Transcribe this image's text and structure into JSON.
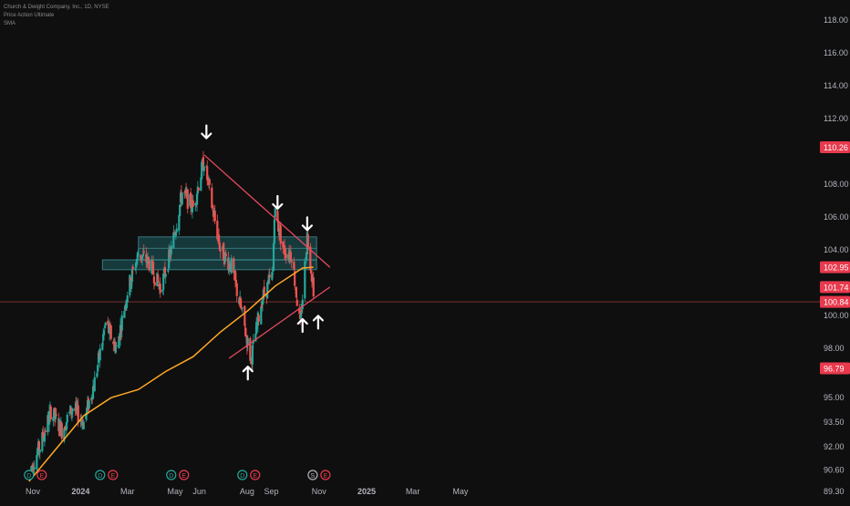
{
  "header": {
    "symbol_line": "Church & Dwight Company, Inc., 1D, NYSE",
    "indicator_1": "Price Action Ultimate",
    "indicator_2": "SMA"
  },
  "colors": {
    "background": "#0f0f0f",
    "bull": "#26a69a",
    "bear": "#ef5350",
    "sma": "#ffa726",
    "trendline": "#e84a5f",
    "zone": "#1d5d63",
    "axis_text": "#b2b5be",
    "arrow": "#ffffff"
  },
  "chart_data": {
    "type": "candlestick",
    "title": "Church & Dwight Company, Inc., 1D, NYSE",
    "x_ticks": [
      "Nov",
      "2024",
      "Mar",
      "May",
      "Jun",
      "Aug",
      "Sep",
      "Nov",
      "2025",
      "Mar",
      "May"
    ],
    "y_ticks": [
      "118.00",
      "116.00",
      "114.00",
      "112.00",
      "108.00",
      "106.00",
      "104.00",
      "100.00",
      "98.00",
      "95.00",
      "93.50",
      "92.00",
      "90.60",
      "89.30"
    ],
    "ylim": [
      88.9,
      118.5
    ],
    "price_labels": [
      {
        "text": "110.26",
        "value": 110.26,
        "color": "#e8394d"
      },
      {
        "text": "102.95",
        "value": 102.95,
        "color": "#e8394d"
      },
      {
        "text": "101.74",
        "value": 101.74,
        "color": "#e8394d"
      },
      {
        "text": "100.84",
        "value": 100.84,
        "color": "#e8394d"
      },
      {
        "text": "96.79",
        "value": 96.79,
        "color": "#e8394d"
      }
    ],
    "horizontal_line": 100.84,
    "price_path": [
      [
        "2023-10-27",
        90.5
      ],
      [
        "2023-11-10",
        92.0
      ],
      [
        "2023-11-24",
        94.2
      ],
      [
        "2023-12-08",
        93.0
      ],
      [
        "2023-12-22",
        94.4
      ],
      [
        "2024-01-05",
        93.5
      ],
      [
        "2024-01-19",
        96.0
      ],
      [
        "2024-02-02",
        99.5
      ],
      [
        "2024-02-16",
        98.0
      ],
      [
        "2024-03-01",
        101.5
      ],
      [
        "2024-03-15",
        103.8
      ],
      [
        "2024-03-29",
        103.2
      ],
      [
        "2024-04-12",
        101.6
      ],
      [
        "2024-04-26",
        104.0
      ],
      [
        "2024-05-10",
        107.5
      ],
      [
        "2024-05-24",
        106.6
      ],
      [
        "2024-06-07",
        109.5
      ],
      [
        "2024-06-14",
        107.5
      ],
      [
        "2024-06-28",
        104.0
      ],
      [
        "2024-07-12",
        103.0
      ],
      [
        "2024-07-26",
        100.0
      ],
      [
        "2024-08-06",
        97.3
      ],
      [
        "2024-08-20",
        101.0
      ],
      [
        "2024-09-03",
        102.5
      ],
      [
        "2024-09-05",
        106.4
      ],
      [
        "2024-09-17",
        104.0
      ],
      [
        "2024-09-27",
        103.8
      ],
      [
        "2024-10-08",
        99.3
      ],
      [
        "2024-10-17",
        104.9
      ],
      [
        "2024-10-25",
        101.7
      ]
    ],
    "sma_path": [
      [
        "2023-10-27",
        89.9
      ],
      [
        "2023-12-01",
        91.9
      ],
      [
        "2024-01-05",
        93.9
      ],
      [
        "2024-02-09",
        95.0
      ],
      [
        "2024-03-15",
        95.5
      ],
      [
        "2024-04-19",
        96.6
      ],
      [
        "2024-05-24",
        97.5
      ],
      [
        "2024-06-28",
        99.0
      ],
      [
        "2024-08-02",
        100.3
      ],
      [
        "2024-09-06",
        101.8
      ],
      [
        "2024-10-11",
        102.9
      ],
      [
        "2024-10-25",
        102.95
      ]
    ],
    "zones": [
      {
        "from": "2024-01-29",
        "to": "2024-10-29",
        "low": 102.8,
        "high": 103.4
      },
      {
        "from": "2024-03-15",
        "to": "2024-10-29",
        "low": 103.4,
        "high": 104.8
      }
    ],
    "trendlines": [
      {
        "from": [
          "2024-06-07",
          109.8
        ],
        "to": [
          "2024-11-15",
          102.95
        ]
      },
      {
        "from": [
          "2024-07-09",
          97.4
        ],
        "to": [
          "2024-11-15",
          101.74
        ]
      }
    ],
    "arrows": [
      {
        "date": "2024-06-10",
        "value": 111.2,
        "dir": "down"
      },
      {
        "date": "2024-09-09",
        "value": 106.9,
        "dir": "down"
      },
      {
        "date": "2024-10-17",
        "value": 105.6,
        "dir": "down"
      },
      {
        "date": "2024-08-02",
        "value": 96.5,
        "dir": "up"
      },
      {
        "date": "2024-10-11",
        "value": 99.4,
        "dir": "up"
      },
      {
        "date": "2024-10-31",
        "value": 99.6,
        "dir": "up"
      }
    ],
    "event_markers": [
      {
        "date": "2023-10-27",
        "icons": [
          "D",
          "E"
        ]
      },
      {
        "date": "2024-01-26",
        "icons": [
          "D",
          "E"
        ]
      },
      {
        "date": "2024-04-26",
        "icons": [
          "D",
          "E"
        ]
      },
      {
        "date": "2024-07-26",
        "icons": [
          "D",
          "E"
        ]
      },
      {
        "date": "2024-10-24",
        "icons": [
          "S",
          "E"
        ]
      }
    ]
  }
}
